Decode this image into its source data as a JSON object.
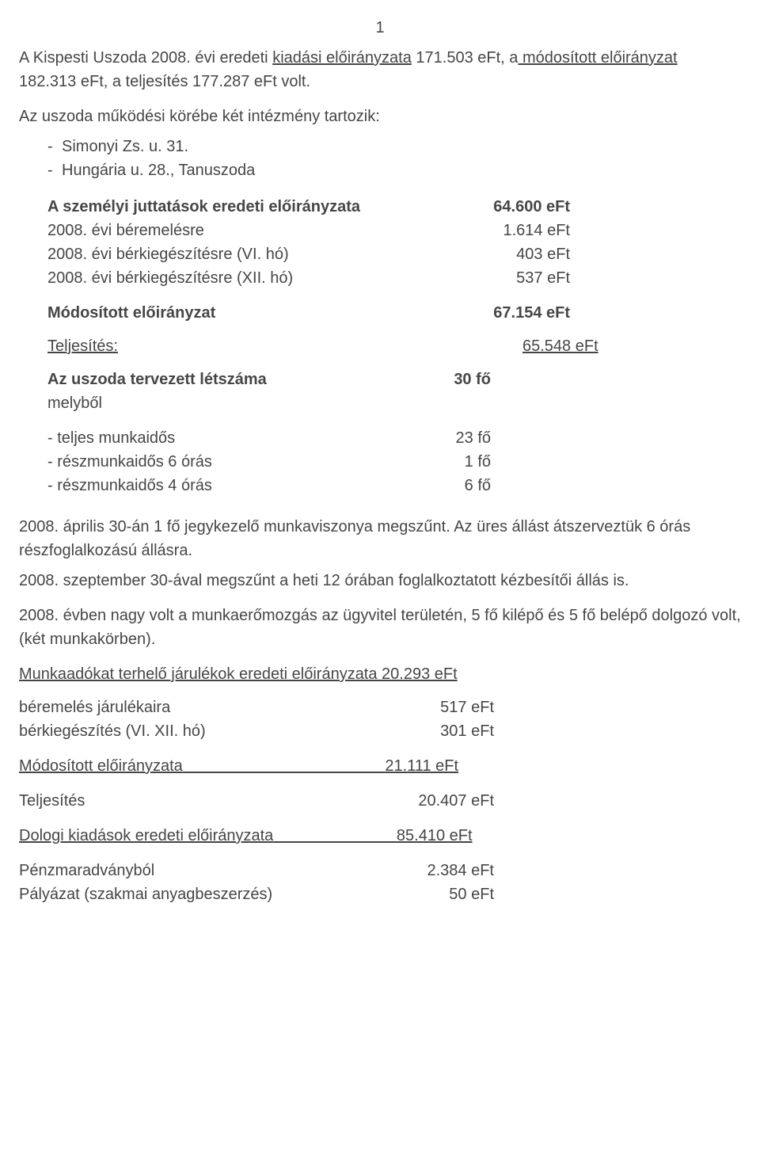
{
  "page_number": "1",
  "intro": {
    "part1_prefix": "A Kispesti Uszoda 2008. évi eredeti ",
    "part1_underlined": "kiadási előirányzata",
    "part1_rest": " 171.503 eFt, a",
    "part1_underlined2": " módosított előirányzat",
    "line2": "182.313 eFt, a teljesítés 177.287 eFt volt."
  },
  "intezmeny_intro": "Az uszoda működési körébe két intézmény tartozik:",
  "intezmenyek": [
    "Simonyi Zs. u. 31.",
    "Hungária u. 28., Tanuszoda"
  ],
  "szemelyi": {
    "title": "A személyi juttatások eredeti előirányzata",
    "title_val": "64.600 eFt",
    "rows": [
      {
        "label": "2008. évi béremelésre",
        "value": "1.614 eFt"
      },
      {
        "label": "2008. évi bérkiegészítésre (VI. hó)",
        "value": "403 eFt"
      },
      {
        "label": "2008. évi bérkiegészítésre (XII. hó)",
        "value": "537 eFt"
      }
    ],
    "modositott_label": "Módosított előirányzat",
    "modositott_val": "67.154 eFt",
    "teljesites_label": "Teljesítés:",
    "teljesites_val": "65.548 eFt"
  },
  "letszam": {
    "title": "Az uszoda tervezett létszáma",
    "title_val": "30 fő",
    "melybol": "melyből",
    "items": [
      {
        "label": "- teljes munkaidős",
        "value": "23 fő"
      },
      {
        "label": "- részmunkaidős 6 órás",
        "value": "1 fő"
      },
      {
        "label": "- részmunkaidős 4 órás",
        "value": "6 fő"
      }
    ]
  },
  "para1": "2008. április 30-án 1 fő jegykezelő munkaviszonya megszűnt. Az üres állást átszerveztük 6 órás részfoglalkozású állásra.",
  "para2": "2008. szeptember 30-ával megszűnt a heti 12 órában foglalkoztatott kézbesítői állás is.",
  "para3": "2008. évben nagy volt a munkaerőmozgás az ügyvitel területén, 5 fő kilépő és 5 fő belépő dolgozó volt, (két munkakörben).",
  "jarulek": {
    "title": "Munkaadókat terhelő járulékok eredeti előirányzata  20.293  eFt",
    "rows": [
      {
        "label": "béremelés járulékaira",
        "value": "517  eFt"
      },
      {
        "label": "bérkiegészítés (VI. XII. hó)",
        "value": "301  eFt"
      }
    ],
    "mod_label": "Módosított előirányzata",
    "mod_spacer": "                                              ",
    "mod_val": "21.111  eFt",
    "telj_label": "Teljesítés",
    "telj_val": "20.407  eFt"
  },
  "dologi": {
    "title_label": "Dologi kiadások eredeti előirányzata",
    "title_spacer": "                            ",
    "title_val": "85.410  eFt",
    "rows": [
      {
        "label": "Pénzmaradványból",
        "value": "2.384  eFt"
      },
      {
        "label": "Pályázat (szakmai anyagbeszerzés)",
        "value": "50  eFt"
      }
    ]
  }
}
